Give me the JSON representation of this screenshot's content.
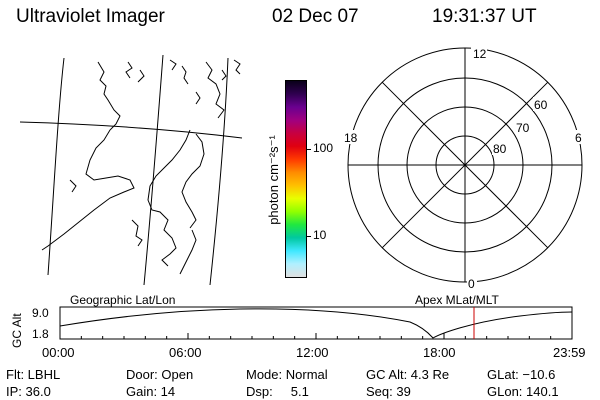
{
  "header": {
    "instrument": "Ultraviolet Imager",
    "date": "02 Dec 07",
    "time": "19:31:37 UT"
  },
  "colorbar": {
    "unit_label": "photon cm⁻²s⁻¹",
    "ticks": [
      "100",
      "10"
    ],
    "colors": [
      "#0a001a",
      "#300050",
      "#6a0090",
      "#a00080",
      "#c80040",
      "#e00010",
      "#ff3a00",
      "#ff8c00",
      "#ffc000",
      "#e8ff00",
      "#90ff00",
      "#20e840",
      "#00c8a0",
      "#40e8ff",
      "#b0f0ff",
      "#e0e0e0"
    ]
  },
  "polar": {
    "mlt_labels": {
      "top": "12",
      "left": "18",
      "right": "6",
      "bottom": "0"
    },
    "lat_labels": [
      "60",
      "70",
      "80"
    ]
  },
  "timeline": {
    "y_axis_label": "GC Alt",
    "y_ticks": [
      "9.0",
      "1.8"
    ],
    "left_title": "Geographic Lat/Lon",
    "right_title": "Apex MLat/MLT",
    "x_ticks": [
      "00:00",
      "06:00",
      "12:00",
      "18:00",
      "23:59"
    ],
    "curve_color": "#000000",
    "marker_color": "#cc0000"
  },
  "info": {
    "row1": {
      "flt": "Flt: LBHL",
      "door": "Door: Open",
      "mode": "Mode: Normal",
      "gcalt": "GC Alt: 4.3 Re",
      "glat": "GLat: −10.6"
    },
    "row2": {
      "ip": "IP: 36.0",
      "gain": "Gain: 14",
      "dsp": "Dsp:     5.1",
      "seq": "Seq: 39",
      "glon": "GLon: 140.1"
    }
  }
}
